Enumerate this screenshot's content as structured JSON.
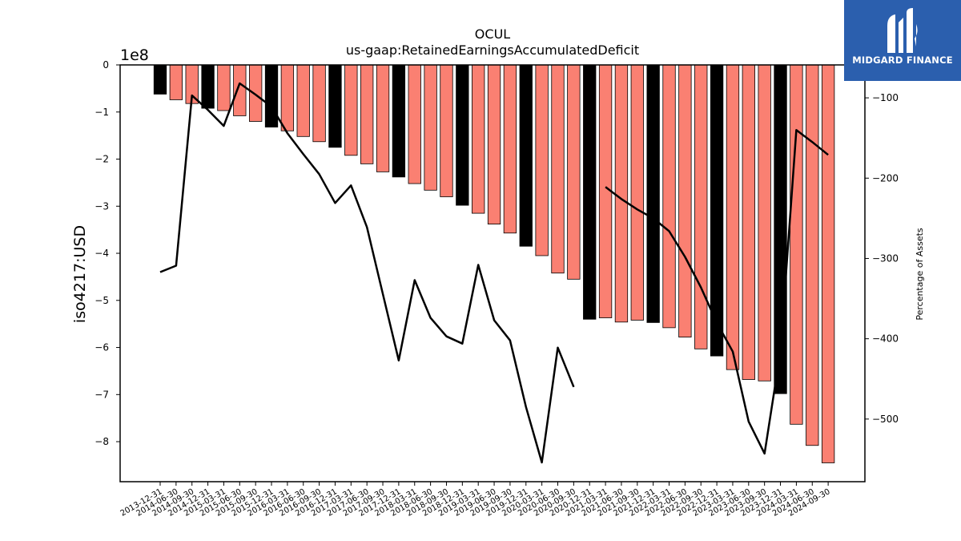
{
  "chart_data": {
    "type": "bar",
    "title": "OCUL",
    "subtitle": "us-gaap:RetainedEarningsAccumulatedDeficit",
    "ylabel": "iso4217:USD",
    "y2label": "Percentage of Assets",
    "y_offset_label": "1e8",
    "ylim": [
      -8.85,
      0
    ],
    "y_ticks": [
      0,
      -1,
      -2,
      -3,
      -4,
      -5,
      -6,
      -7,
      -8
    ],
    "y2lim": [
      -578,
      -59
    ],
    "y2_ticks": [
      -100,
      -200,
      -300,
      -400,
      -500
    ],
    "grid": false,
    "categories": [
      "2013-12-31",
      "2014-06-30",
      "2014-09-30",
      "2014-12-31",
      "2015-03-31",
      "2015-06-30",
      "2015-09-30",
      "2015-12-31",
      "2016-03-31",
      "2016-06-30",
      "2016-09-30",
      "2016-12-31",
      "2017-03-31",
      "2017-06-30",
      "2017-09-30",
      "2017-12-31",
      "2018-03-31",
      "2018-06-30",
      "2018-09-30",
      "2018-12-31",
      "2019-03-31",
      "2019-06-30",
      "2019-09-30",
      "2019-12-31",
      "2020-03-31",
      "2020-06-30",
      "2020-09-30",
      "2020-12-31",
      "2021-03-31",
      "2021-06-30",
      "2021-09-30",
      "2021-12-31",
      "2022-03-31",
      "2022-06-30",
      "2022-09-30",
      "2022-12-31",
      "2023-03-31",
      "2023-06-30",
      "2023-09-30",
      "2023-12-31",
      "2024-03-31",
      "2024-06-30",
      "2024-09-30"
    ],
    "series": [
      {
        "values": [
          -0.62,
          -0.74,
          -0.82,
          -0.92,
          -0.97,
          -1.08,
          -1.2,
          -1.32,
          -1.4,
          -1.52,
          -1.63,
          -1.75,
          -1.92,
          -2.1,
          -2.27,
          -2.38,
          -2.52,
          -2.66,
          -2.8,
          -2.98,
          -3.15,
          -3.38,
          -3.57,
          -3.85,
          -4.05,
          -4.42,
          -4.55,
          -5.4,
          -5.37,
          -5.46,
          -5.42,
          -5.47,
          -5.58,
          -5.78,
          -6.03,
          -6.18,
          -6.47,
          -6.68,
          -6.71,
          -6.98,
          -7.63,
          -8.08,
          -8.45
        ],
        "year_end": [
          true,
          false,
          false,
          true,
          false,
          false,
          false,
          true,
          false,
          false,
          false,
          true,
          false,
          false,
          false,
          true,
          false,
          false,
          false,
          true,
          false,
          false,
          false,
          true,
          false,
          false,
          false,
          true,
          false,
          false,
          false,
          true,
          false,
          false,
          false,
          true,
          false,
          false,
          false,
          true,
          false,
          false,
          false
        ],
        "color": "#fa8072",
        "year_end_color": "#000000"
      },
      {
        "type": "line",
        "axis": "y2",
        "values": [
          -317,
          -309,
          -97,
          -115,
          -135,
          -82,
          -96,
          -111,
          -144,
          -170,
          -195,
          -231,
          -209,
          -261,
          -344,
          -427,
          -327,
          -374,
          -397,
          -406,
          -308,
          -377,
          -402,
          -485,
          -554,
          -411,
          -460,
          null,
          -211,
          -226,
          -239,
          -250,
          -266,
          -298,
          -336,
          -380,
          -416,
          -503,
          -543,
          -416,
          -140,
          -155,
          -171
        ],
        "color": "#000000"
      }
    ]
  },
  "logo": {
    "text": "MIDGARD FINANCE",
    "bg_color": "#2b5fae"
  }
}
